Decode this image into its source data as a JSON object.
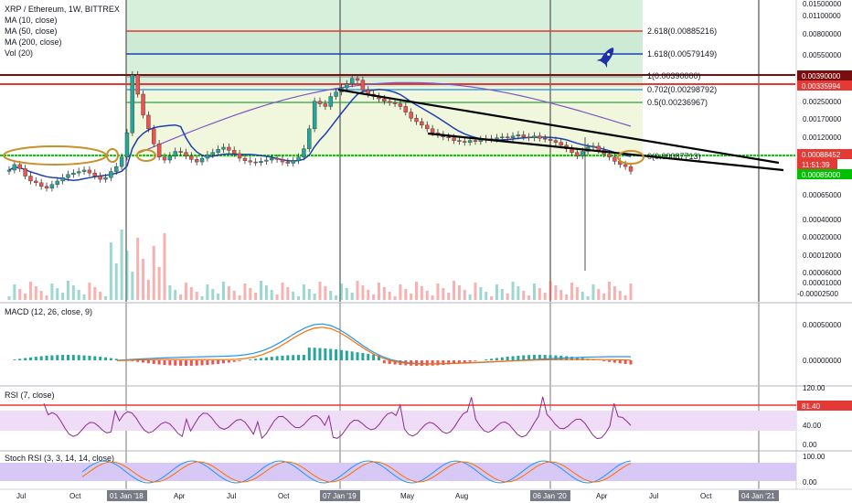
{
  "chart_data": {
    "type": "candlestick",
    "legend": {
      "title": "XRP / Ethereum, 1W, BITTREX",
      "ma10": "MA (10, close)",
      "ma50": "MA (50, close)",
      "ma200": "MA (200, close)",
      "vol": "Vol (20)"
    },
    "price_axis": [
      "0.01500000",
      "0.01100000",
      "0.00800000",
      "0.00550000",
      "0.00390000",
      "0.00335994",
      "0.00250000",
      "0.00170000",
      "0.00120000",
      "0.00088452",
      "11:51:39",
      "0.00085000",
      "0.00065000",
      "0.00040000",
      "0.00020000",
      "0.00012000",
      "0.00006000",
      "0.00001000",
      "-0.00002500"
    ],
    "time_axis": [
      "Jul",
      "Oct",
      "01 Jan '18",
      "Apr",
      "Jul",
      "Oct",
      "07 Jan '19",
      "May",
      "Aug",
      "06 Jan '20",
      "Apr",
      "Jul",
      "Oct",
      "04 Jan '21"
    ],
    "time_axis_highlight": [
      "01 Jan '18",
      "07 Jan '19",
      "06 Jan '20",
      "04 Jan '21"
    ],
    "fib_levels": [
      {
        "label": "2.618(0.00885216)",
        "color": "#e53935"
      },
      {
        "label": "1.618(0.00579149)",
        "color": "#1e3fb3"
      },
      {
        "label": "1(0.00390000)",
        "color": "#8b8b8b"
      },
      {
        "label": "0.702(0.00298792)",
        "color": "#1e88e5"
      },
      {
        "label": "0.5(0.00236967)",
        "color": "#2e9e44"
      },
      {
        "label": "0(0.00087713)",
        "color": "#43a047"
      }
    ],
    "price_tags": [
      {
        "text": "0.00390000",
        "color": "#7a0d0d"
      },
      {
        "text": "0.00335994",
        "color": "#e53935"
      },
      {
        "text": "0.00088452",
        "color": "#e53935"
      },
      {
        "text": "11:51:39",
        "color": "#e53935"
      },
      {
        "text": "0.00085000",
        "color": "#00c000"
      }
    ],
    "candles_close": [
      0.0009,
      0.00098,
      0.00092,
      0.00082,
      0.00076,
      0.00074,
      0.0007,
      0.00068,
      0.00072,
      0.00076,
      0.0008,
      0.00084,
      0.00086,
      0.00088,
      0.0009,
      0.00086,
      0.00082,
      0.00078,
      0.0008,
      0.00088,
      0.00095,
      0.0011,
      0.0016,
      0.0039,
      0.0029,
      0.0021,
      0.0017,
      0.00135,
      0.0011,
      0.00105,
      0.00112,
      0.0012,
      0.00118,
      0.00112,
      0.00106,
      0.00102,
      0.00108,
      0.00114,
      0.00118,
      0.00124,
      0.00128,
      0.00122,
      0.00116,
      0.00108,
      0.00104,
      0.00102,
      0.00101,
      0.00103,
      0.00105,
      0.00108,
      0.00106,
      0.00102,
      0.001,
      0.00104,
      0.0011,
      0.00125,
      0.0017,
      0.0026,
      0.0025,
      0.0024,
      0.0028,
      0.003,
      0.0032,
      0.0034,
      0.0037,
      0.0036,
      0.0031,
      0.0029,
      0.0028,
      0.0027,
      0.0026,
      0.00255,
      0.0025,
      0.0024,
      0.0022,
      0.002,
      0.0019,
      0.0018,
      0.0017,
      0.0016,
      0.00155,
      0.0015,
      0.00148,
      0.00142,
      0.0014,
      0.00138,
      0.00142,
      0.0014,
      0.00144,
      0.00146,
      0.00145,
      0.00148,
      0.0015,
      0.00148,
      0.00152,
      0.00155,
      0.0015,
      0.00148,
      0.00152,
      0.00147,
      0.00145,
      0.00142,
      0.00138,
      0.00132,
      0.00125,
      0.00118,
      0.00112,
      0.0012,
      0.00128,
      0.0013,
      0.00122,
      0.00115,
      0.0011,
      0.00103,
      0.00098,
      0.00095,
      0.00088452
    ],
    "macd": {
      "label": "MACD (12, 26, close, 9)",
      "ticks": [
        "0.00050000",
        "0.00000000"
      ]
    },
    "rsi": {
      "label": "RSI (7, close)",
      "ticks": [
        "120.00",
        "81.40",
        "40.00",
        "0.00"
      ]
    },
    "stoch": {
      "label": "Stoch RSI (3, 3, 14, 14, close)",
      "ticks": [
        "100.00",
        "0.00"
      ]
    },
    "colors": {
      "up": "#26a69a",
      "down": "#ef5350",
      "ma10": "#1e3fb3",
      "ma200": "#7e57c2",
      "green_zone": "#d6f0dc",
      "yellow_zone": "#f1f7dc",
      "rsi_band": "#efdcf7",
      "stoch_band": "#d7c8f5"
    }
  }
}
